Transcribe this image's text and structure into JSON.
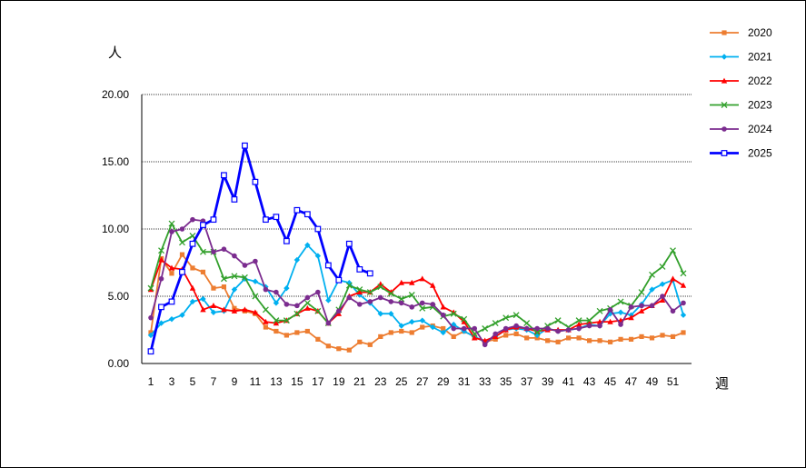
{
  "chart_data": {
    "type": "line",
    "title": "",
    "ylabel": "人",
    "xlabel": "週",
    "ylim": [
      0,
      20
    ],
    "yticks": [
      "0.00",
      "5.00",
      "10.00",
      "15.00",
      "20.00"
    ],
    "xlim": [
      1,
      52
    ],
    "xticks": [
      "1",
      "3",
      "5",
      "7",
      "9",
      "11",
      "13",
      "15",
      "17",
      "19",
      "21",
      "23",
      "25",
      "27",
      "29",
      "31",
      "33",
      "35",
      "37",
      "39",
      "41",
      "43",
      "45",
      "47",
      "49",
      "51"
    ],
    "grid": "horizontal dotted",
    "legend_position": "right",
    "series": [
      {
        "name": "2020",
        "color": "#ED7D31",
        "marker": "square",
        "values": [
          2.3,
          7.8,
          6.7,
          8.1,
          7.1,
          6.8,
          5.6,
          5.7,
          4.1,
          3.9,
          3.7,
          2.7,
          2.4,
          2.1,
          2.3,
          2.4,
          1.8,
          1.3,
          1.1,
          1.0,
          1.6,
          1.4,
          2.0,
          2.3,
          2.4,
          2.3,
          2.7,
          2.8,
          2.6,
          2.0,
          2.4,
          2.0,
          1.6,
          1.8,
          2.1,
          2.2,
          1.9,
          1.9,
          1.7,
          1.6,
          1.9,
          1.9,
          1.7,
          1.7,
          1.6,
          1.8,
          1.8,
          2.0,
          1.9,
          2.1,
          2.0,
          2.3
        ]
      },
      {
        "name": "2021",
        "color": "#00B0F0",
        "marker": "diamond",
        "values": [
          2.1,
          3.0,
          3.3,
          3.6,
          4.6,
          4.8,
          3.8,
          3.9,
          5.5,
          6.3,
          6.1,
          5.7,
          4.5,
          5.6,
          7.7,
          8.8,
          8.0,
          4.7,
          6.2,
          6.0,
          5.1,
          4.5,
          3.7,
          3.7,
          2.8,
          3.1,
          3.2,
          2.7,
          2.3,
          2.9,
          2.4,
          2.0,
          1.6,
          2.0,
          2.5,
          2.6,
          2.5,
          2.1,
          2.6,
          2.4,
          2.5,
          2.6,
          2.9,
          2.8,
          3.7,
          3.8,
          3.6,
          4.4,
          5.5,
          5.9,
          6.2,
          3.6
        ]
      },
      {
        "name": "2022",
        "color": "#FF0000",
        "marker": "triangle",
        "values": [
          5.5,
          7.7,
          7.1,
          7.0,
          5.6,
          4.0,
          4.3,
          4.0,
          3.9,
          4.0,
          3.8,
          3.1,
          3.0,
          3.2,
          3.7,
          4.1,
          3.9,
          3.0,
          3.7,
          5.0,
          5.3,
          5.3,
          5.9,
          5.3,
          6.0,
          6.0,
          6.3,
          5.8,
          4.2,
          3.8,
          3.1,
          1.9,
          1.7,
          2.0,
          2.5,
          2.7,
          2.6,
          2.4,
          2.5,
          2.5,
          2.5,
          2.9,
          3.0,
          3.1,
          3.1,
          3.2,
          3.4,
          3.9,
          4.3,
          4.7,
          6.3,
          5.8
        ]
      },
      {
        "name": "2023",
        "color": "#33A02C",
        "marker": "cross",
        "values": [
          5.6,
          8.4,
          10.4,
          9.0,
          9.5,
          8.3,
          8.3,
          6.3,
          6.5,
          6.4,
          5.0,
          4.0,
          3.2,
          3.2,
          3.7,
          4.5,
          3.9,
          3.0,
          4.0,
          5.8,
          5.5,
          5.3,
          5.7,
          5.2,
          4.8,
          5.1,
          4.1,
          4.2,
          3.5,
          3.7,
          3.3,
          2.2,
          2.6,
          3.0,
          3.4,
          3.6,
          3.0,
          2.3,
          2.8,
          3.2,
          2.7,
          3.2,
          3.2,
          3.9,
          4.1,
          4.6,
          4.3,
          5.3,
          6.6,
          7.2,
          8.4,
          6.7
        ]
      },
      {
        "name": "2024",
        "color": "#7B2C8F",
        "marker": "circle",
        "values": [
          3.4,
          6.3,
          9.8,
          10.0,
          10.7,
          10.6,
          8.3,
          8.5,
          8.0,
          7.3,
          7.6,
          5.5,
          5.3,
          4.4,
          4.3,
          4.9,
          5.3,
          3.0,
          3.9,
          4.9,
          4.4,
          4.6,
          4.9,
          4.6,
          4.5,
          4.2,
          4.5,
          4.4,
          3.6,
          2.6,
          2.6,
          2.6,
          1.4,
          2.2,
          2.6,
          2.8,
          2.6,
          2.6,
          2.6,
          2.4,
          2.5,
          2.6,
          2.8,
          2.8,
          4.0,
          2.9,
          4.2,
          4.3,
          4.3,
          5.0,
          3.9,
          4.5
        ]
      },
      {
        "name": "2025",
        "color": "#0000FF",
        "marker": "open-square",
        "values": [
          0.9,
          4.2,
          4.6,
          6.8,
          8.9,
          10.3,
          10.7,
          14.0,
          12.2,
          16.2,
          13.5,
          10.7,
          10.9,
          9.1,
          11.4,
          11.1,
          10.0,
          7.3,
          6.2,
          8.9,
          7.0,
          6.7
        ]
      }
    ]
  }
}
